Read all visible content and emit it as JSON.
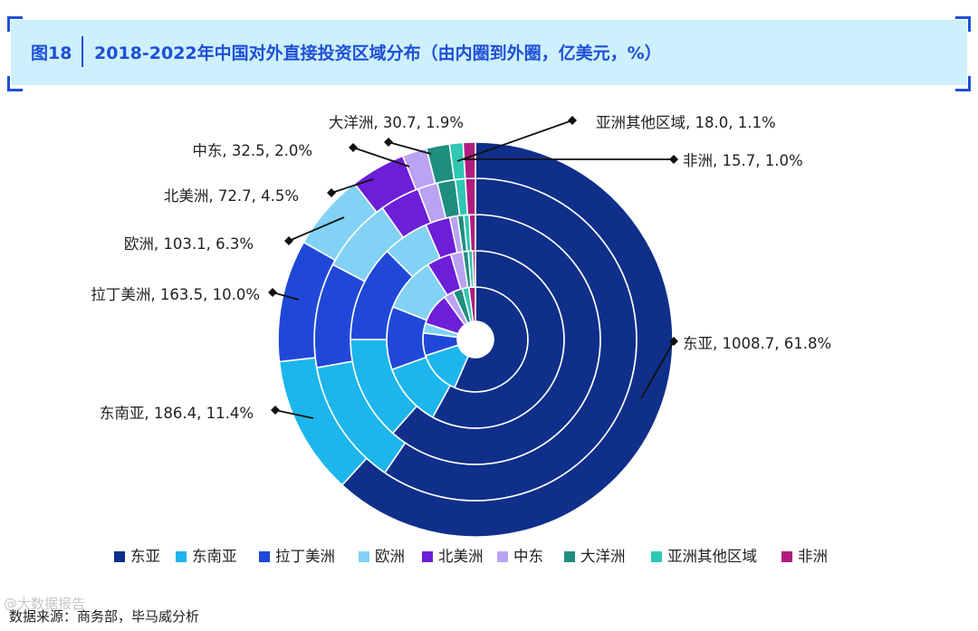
{
  "header": {
    "figure_number": "图18",
    "title": "2018-2022年中国对外直接投资区域分布（由内圈到外圈，亿美元，%）"
  },
  "chart_data": {
    "type": "pie",
    "subtype": "nested-donut",
    "title": "2018-2022年中国对外直接投资区域分布（由内圈到外圈，亿美元，%）",
    "ring_order": "inner-to-outer",
    "ring_count": 5,
    "categories": [
      "东亚",
      "东南亚",
      "拉丁美洲",
      "欧洲",
      "北美洲",
      "中东",
      "大洋洲",
      "亚洲其他区域",
      "非洲"
    ],
    "colors": [
      "#0f2f8a",
      "#1cb6ec",
      "#2048d8",
      "#82d2f6",
      "#6d1ed8",
      "#b9a3f2",
      "#1f8e7f",
      "#2ec7b4",
      "#b01c7e"
    ],
    "outer_ring": {
      "values": [
        1008.7,
        186.4,
        163.5,
        103.1,
        72.7,
        32.5,
        30.7,
        18.0,
        15.7
      ],
      "shares": [
        61.8,
        11.4,
        10.0,
        6.3,
        4.5,
        2.0,
        1.9,
        1.1,
        1.0
      ]
    },
    "labels": [
      {
        "category": "东亚",
        "text": "东亚, 1008.7, 61.8%"
      },
      {
        "category": "东南亚",
        "text": "东南亚, 186.4, 11.4%"
      },
      {
        "category": "拉丁美洲",
        "text": "拉丁美洲, 163.5, 10.0%"
      },
      {
        "category": "欧洲",
        "text": "欧洲, 103.1, 6.3%"
      },
      {
        "category": "北美洲",
        "text": "北美洲, 72.7, 4.5%"
      },
      {
        "category": "中东",
        "text": "中东, 32.5, 2.0%"
      },
      {
        "category": "大洋洲",
        "text": "大洋洲, 30.7, 1.9%"
      },
      {
        "category": "亚洲其他区域",
        "text": "亚洲其他区域, 18.0, 1.1%"
      },
      {
        "category": "非洲",
        "text": "非洲, 15.7, 1.0%"
      }
    ],
    "rings": [
      {
        "shares": [
          56.5,
          13.5,
          7.0,
          3.0,
          10.0,
          3.0,
          3.0,
          2.0,
          2.0
        ]
      },
      {
        "shares": [
          58.0,
          11.5,
          11.5,
          10.0,
          4.5,
          2.2,
          1.0,
          0.8,
          0.5
        ]
      },
      {
        "shares": [
          61.5,
          13.5,
          12.5,
          6.0,
          3.2,
          1.0,
          0.8,
          0.7,
          0.8
        ]
      },
      {
        "shares": [
          59.5,
          12.7,
          10.5,
          7.5,
          4.0,
          2.0,
          1.8,
          1.0,
          1.0
        ]
      },
      {
        "shares": [
          61.8,
          11.4,
          10.0,
          6.3,
          4.5,
          2.0,
          1.9,
          1.1,
          1.0
        ]
      }
    ],
    "legend": [
      "东亚",
      "东南亚",
      "拉丁美洲",
      "欧洲",
      "北美洲",
      "中东",
      "大洋洲",
      "亚洲其他区域",
      "非洲"
    ],
    "legend_position": "bottom"
  },
  "footer": {
    "source": "数据来源：商务部，毕马威分析",
    "watermark": "@大数据报告"
  }
}
